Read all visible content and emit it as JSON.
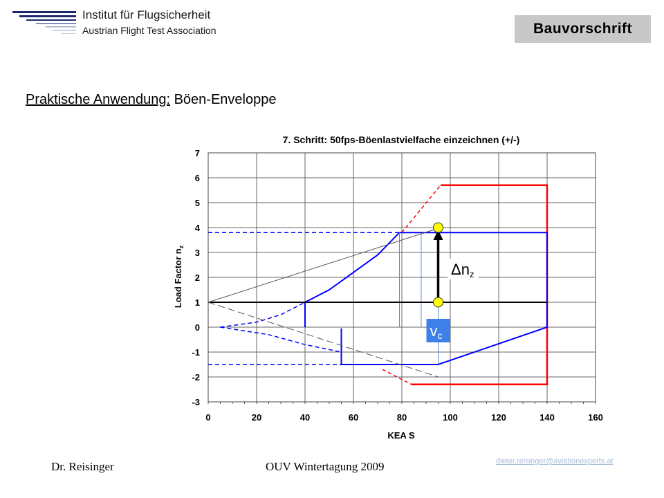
{
  "header": {
    "org_name": "Institut für Flugsicherheit",
    "org_sub": "Austrian Flight Test Association",
    "badge": "Bauvorschrift"
  },
  "heading": {
    "underlined": "Praktische Anwendung:",
    "rest": " Böen-Enveloppe"
  },
  "footer": {
    "author": "Dr. Reisinger",
    "event": "OUV Wintertagung 2009",
    "email": "dieter.reisinger@aviationexperts.at"
  },
  "colors": {
    "red": "#ff0000",
    "blue": "#0000ff",
    "light_blue": "#4f8fe0",
    "yellow": "#ffff00",
    "vc_box": "#3f7fe8"
  },
  "chart_data": {
    "type": "line",
    "title": "7. Schritt: 50fps-Böenlastvielfache einzeichnen (+/-)",
    "xlabel": "KEA S",
    "ylabel_main": "Load Factor n",
    "ylabel_sub": "z",
    "xlim": [
      0,
      160
    ],
    "ylim": [
      -3,
      7
    ],
    "x_ticks": [
      0,
      20,
      40,
      60,
      80,
      100,
      120,
      140,
      160
    ],
    "y_ticks": [
      -3,
      -2,
      -1,
      0,
      1,
      2,
      3,
      4,
      5,
      6,
      7
    ],
    "grid": true,
    "annotations": {
      "delta_label": "Δn",
      "delta_sub": "z",
      "vc_label": "v",
      "vc_sub": "c"
    },
    "markers": [
      {
        "name": "upper-gust-point",
        "x": 95,
        "y": 4.0
      },
      {
        "name": "lower-gust-point",
        "x": 95,
        "y": 1.0
      }
    ],
    "arrow": {
      "x": 95,
      "y_from": 1.0,
      "y_to": 4.0
    },
    "series": [
      {
        "style": "red-dashed",
        "points": [
          [
            80,
            3.8
          ],
          [
            96,
            5.7
          ]
        ]
      },
      {
        "style": "red-solid",
        "points": [
          [
            96,
            5.7
          ],
          [
            140,
            5.7
          ],
          [
            140,
            -2.3
          ],
          [
            84,
            -2.3
          ]
        ]
      },
      {
        "style": "red-dashed",
        "points": [
          [
            72,
            -1.7
          ],
          [
            84,
            -2.3
          ]
        ]
      },
      {
        "style": "blue-solid",
        "points": [
          [
            40,
            0
          ],
          [
            40,
            1.0
          ],
          [
            50,
            1.5
          ],
          [
            60,
            2.2
          ],
          [
            70,
            2.9
          ],
          [
            79,
            3.8
          ],
          [
            140,
            3.8
          ],
          [
            140,
            0
          ],
          [
            95,
            -1.5
          ],
          [
            55,
            -1.5
          ],
          [
            55,
            -1.0
          ],
          [
            55,
            -0.05
          ]
        ]
      },
      {
        "style": "blue-dashed",
        "points": [
          [
            5,
            0
          ],
          [
            20,
            0.2
          ],
          [
            30,
            0.5
          ],
          [
            40,
            1.0
          ]
        ]
      },
      {
        "style": "blue-dashed",
        "points": [
          [
            5,
            0
          ],
          [
            25,
            -0.3
          ],
          [
            40,
            -0.7
          ],
          [
            55,
            -1.0
          ]
        ]
      },
      {
        "style": "blue-dashed",
        "points": [
          [
            0,
            3.8
          ],
          [
            79,
            3.8
          ]
        ]
      },
      {
        "style": "blue-dashed",
        "points": [
          [
            0,
            -1.5
          ],
          [
            55,
            -1.5
          ]
        ]
      },
      {
        "style": "light-blue-solid",
        "points": [
          [
            79,
            0
          ],
          [
            79,
            3.8
          ]
        ]
      },
      {
        "style": "light-blue-solid",
        "points": [
          [
            88,
            0
          ],
          [
            88,
            3.8
          ]
        ]
      },
      {
        "style": "light-blue-solid",
        "points": [
          [
            95,
            -1.5
          ],
          [
            95,
            1.0
          ]
        ]
      },
      {
        "style": "black-solid",
        "points": [
          [
            0,
            1
          ],
          [
            140,
            1
          ]
        ]
      },
      {
        "style": "gray-solid",
        "points": [
          [
            0,
            1
          ],
          [
            96,
            4.0
          ]
        ]
      },
      {
        "style": "gray-dashed",
        "points": [
          [
            0,
            1
          ],
          [
            95,
            -2.0
          ]
        ]
      }
    ]
  }
}
